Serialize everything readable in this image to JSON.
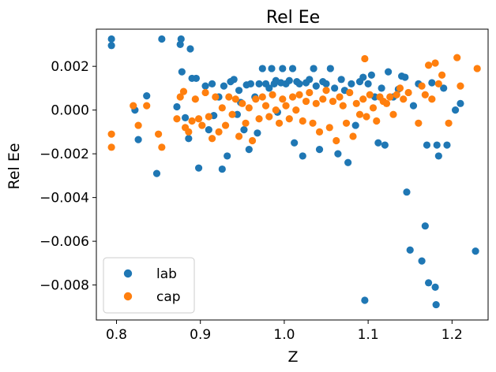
{
  "chart_data": {
    "type": "scatter",
    "title": "Rel Ee",
    "xlabel": "Z",
    "ylabel": "Rel Ee",
    "xlim": [
      0.776,
      1.243
    ],
    "ylim": [
      -0.0096,
      0.0037
    ],
    "xticks": [
      0.8,
      0.9,
      1.0,
      1.1,
      1.2
    ],
    "xtick_labels": [
      "0.8",
      "0.9",
      "1.0",
      "1.1",
      "1.2"
    ],
    "yticks": [
      0.002,
      0.0,
      -0.002,
      -0.004,
      -0.006,
      -0.008
    ],
    "ytick_labels": [
      "0.002",
      "0.000",
      "−0.002",
      "−0.004",
      "−0.006",
      "−0.008"
    ],
    "grid": false,
    "legend_position": "lower-left",
    "series": [
      {
        "name": "lab",
        "color": "#1f77b4",
        "points": [
          [
            0.794,
            0.00325
          ],
          [
            0.794,
            0.00295
          ],
          [
            0.822,
            0.0
          ],
          [
            0.826,
            -0.00135
          ],
          [
            0.836,
            0.00065
          ],
          [
            0.848,
            -0.0029
          ],
          [
            0.854,
            0.00325
          ],
          [
            0.872,
            0.00015
          ],
          [
            0.877,
            0.00325
          ],
          [
            0.876,
            0.003
          ],
          [
            0.878,
            0.00175
          ],
          [
            0.888,
            0.0028
          ],
          [
            0.882,
            -0.00035
          ],
          [
            0.886,
            -0.0013
          ],
          [
            0.89,
            0.00145
          ],
          [
            0.895,
            0.00145
          ],
          [
            0.898,
            -0.00265
          ],
          [
            0.906,
            0.0011
          ],
          [
            0.91,
            -0.0009
          ],
          [
            0.914,
            0.0012
          ],
          [
            0.916,
            -0.00025
          ],
          [
            0.922,
            0.0006
          ],
          [
            0.926,
            -0.0027
          ],
          [
            0.928,
            0.0011
          ],
          [
            0.932,
            -0.0021
          ],
          [
            0.936,
            0.0013
          ],
          [
            0.94,
            0.0014
          ],
          [
            0.944,
            -0.0002
          ],
          [
            0.946,
            0.0009
          ],
          [
            0.948,
            0.00035
          ],
          [
            0.952,
            -0.0009
          ],
          [
            0.955,
            0.00115
          ],
          [
            0.958,
            -0.0018
          ],
          [
            0.96,
            0.0012
          ],
          [
            0.965,
            0.0006
          ],
          [
            0.968,
            -0.00105
          ],
          [
            0.97,
            0.0012
          ],
          [
            0.974,
            0.0019
          ],
          [
            0.978,
            0.0012
          ],
          [
            0.982,
            0.001
          ],
          [
            0.985,
            0.0019
          ],
          [
            0.988,
            0.0012
          ],
          [
            0.99,
            0.00135
          ],
          [
            0.992,
            -0.0001
          ],
          [
            0.996,
            0.00125
          ],
          [
            0.998,
            0.0019
          ],
          [
            1.002,
            0.0012
          ],
          [
            1.006,
            0.00135
          ],
          [
            1.01,
            0.0019
          ],
          [
            1.012,
            -0.0015
          ],
          [
            1.015,
            0.0013
          ],
          [
            1.018,
            0.0012
          ],
          [
            1.022,
            -0.0021
          ],
          [
            1.026,
            0.00125
          ],
          [
            1.03,
            0.0014
          ],
          [
            1.035,
            0.0019
          ],
          [
            1.038,
            0.0011
          ],
          [
            1.042,
            -0.0018
          ],
          [
            1.046,
            0.0013
          ],
          [
            1.05,
            0.0012
          ],
          [
            1.055,
            0.0019
          ],
          [
            1.06,
            0.001
          ],
          [
            1.064,
            -0.002
          ],
          [
            1.068,
            0.0014
          ],
          [
            1.072,
            0.0009
          ],
          [
            1.076,
            -0.0024
          ],
          [
            1.08,
            0.0012
          ],
          [
            1.085,
            -0.0007
          ],
          [
            1.09,
            0.0013
          ],
          [
            1.094,
            0.0015
          ],
          [
            1.096,
            -0.0087
          ],
          [
            1.1,
            0.0012
          ],
          [
            1.104,
            0.0016
          ],
          [
            1.108,
            0.0006
          ],
          [
            1.112,
            -0.0015
          ],
          [
            1.116,
            0.001
          ],
          [
            1.12,
            -0.0016
          ],
          [
            1.124,
            0.00175
          ],
          [
            1.13,
            0.0006
          ],
          [
            1.136,
            0.00095
          ],
          [
            1.14,
            0.00155
          ],
          [
            1.144,
            0.0015
          ],
          [
            1.146,
            -0.00375
          ],
          [
            1.15,
            -0.0064
          ],
          [
            1.154,
            0.0002
          ],
          [
            1.16,
            0.0012
          ],
          [
            1.164,
            -0.0069
          ],
          [
            1.168,
            -0.0053
          ],
          [
            1.17,
            -0.0016
          ],
          [
            1.172,
            -0.0079
          ],
          [
            1.176,
            0.00125
          ],
          [
            1.18,
            -0.0081
          ],
          [
            1.181,
            -0.0089
          ],
          [
            1.182,
            -0.0016
          ],
          [
            1.184,
            -0.0021
          ],
          [
            1.19,
            0.001
          ],
          [
            1.194,
            -0.0016
          ],
          [
            1.204,
            0.0
          ],
          [
            1.21,
            0.0003
          ],
          [
            1.228,
            -0.00645
          ]
        ]
      },
      {
        "name": "cap",
        "color": "#ff7f0e",
        "points": [
          [
            0.794,
            -0.0011
          ],
          [
            0.794,
            -0.0017
          ],
          [
            0.82,
            0.0002
          ],
          [
            0.826,
            -0.0007
          ],
          [
            0.836,
            0.0002
          ],
          [
            0.85,
            -0.0011
          ],
          [
            0.854,
            -0.0017
          ],
          [
            0.872,
            -0.0004
          ],
          [
            0.876,
            0.0006
          ],
          [
            0.88,
            0.00085
          ],
          [
            0.882,
            -0.0008
          ],
          [
            0.886,
            -0.001
          ],
          [
            0.89,
            -0.0005
          ],
          [
            0.894,
            0.0005
          ],
          [
            0.898,
            -0.0004
          ],
          [
            0.902,
            -0.0007
          ],
          [
            0.906,
            0.0008
          ],
          [
            0.91,
            -0.0003
          ],
          [
            0.914,
            -0.0013
          ],
          [
            0.918,
            0.0006
          ],
          [
            0.922,
            -0.001
          ],
          [
            0.926,
            0.0001
          ],
          [
            0.93,
            -0.0007
          ],
          [
            0.934,
            0.0006
          ],
          [
            0.938,
            -0.0002
          ],
          [
            0.942,
            0.0005
          ],
          [
            0.946,
            -0.0012
          ],
          [
            0.95,
            0.0003
          ],
          [
            0.954,
            -0.0006
          ],
          [
            0.958,
            0.0001
          ],
          [
            0.962,
            -0.0014
          ],
          [
            0.966,
            0.0005
          ],
          [
            0.97,
            -0.0004
          ],
          [
            0.974,
            0.0006
          ],
          [
            0.978,
            0.0002
          ],
          [
            0.982,
            -0.0003
          ],
          [
            0.986,
            0.0007
          ],
          [
            0.99,
            0.0
          ],
          [
            0.994,
            -0.0006
          ],
          [
            0.998,
            0.0005
          ],
          [
            1.002,
            0.0002
          ],
          [
            1.006,
            -0.0004
          ],
          [
            1.01,
            0.0006
          ],
          [
            1.014,
            0.0
          ],
          [
            1.018,
            0.0007
          ],
          [
            1.022,
            -0.0005
          ],
          [
            1.026,
            0.0004
          ],
          [
            1.03,
            0.0008
          ],
          [
            1.034,
            -0.0006
          ],
          [
            1.038,
            0.0003
          ],
          [
            1.042,
            -0.001
          ],
          [
            1.046,
            0.0005
          ],
          [
            1.05,
            0.0009
          ],
          [
            1.054,
            -0.0008
          ],
          [
            1.058,
            0.0004
          ],
          [
            1.062,
            -0.0014
          ],
          [
            1.066,
            0.0006
          ],
          [
            1.07,
            0.0002
          ],
          [
            1.074,
            -0.0006
          ],
          [
            1.078,
            0.0008
          ],
          [
            1.082,
            -0.0012
          ],
          [
            1.086,
            0.0003
          ],
          [
            1.09,
            -0.0002
          ],
          [
            1.094,
            0.0005
          ],
          [
            1.096,
            0.00235
          ],
          [
            1.098,
            -0.0003
          ],
          [
            1.102,
            0.0007
          ],
          [
            1.106,
            0.0001
          ],
          [
            1.11,
            -0.0005
          ],
          [
            1.114,
            0.0006
          ],
          [
            1.118,
            0.0004
          ],
          [
            1.122,
            0.0003
          ],
          [
            1.126,
            0.0006
          ],
          [
            1.13,
            -0.0002
          ],
          [
            1.134,
            0.0007
          ],
          [
            1.138,
            0.001
          ],
          [
            1.142,
            0.0005
          ],
          [
            1.148,
            0.0008
          ],
          [
            1.16,
            -0.0006
          ],
          [
            1.164,
            0.0011
          ],
          [
            1.168,
            0.0007
          ],
          [
            1.172,
            0.00205
          ],
          [
            1.176,
            0.0005
          ],
          [
            1.18,
            0.00215
          ],
          [
            1.184,
            0.0012
          ],
          [
            1.188,
            0.0016
          ],
          [
            1.196,
            -0.0006
          ],
          [
            1.206,
            0.0024
          ],
          [
            1.21,
            0.0011
          ],
          [
            1.23,
            0.0019
          ]
        ]
      }
    ]
  }
}
